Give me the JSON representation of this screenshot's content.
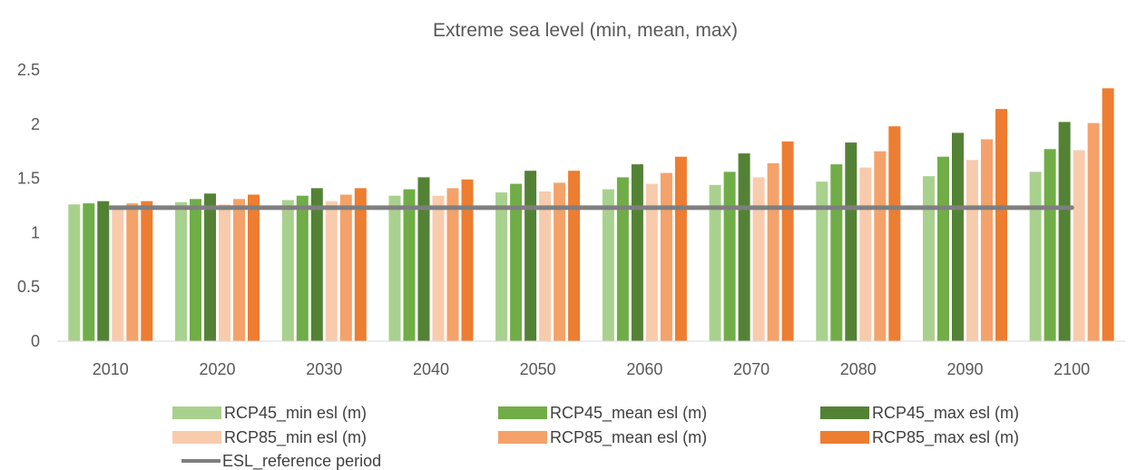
{
  "chart_data": {
    "type": "bar",
    "title": "Extreme sea level (min, mean, max)",
    "xlabel": "",
    "ylabel": "",
    "ylim": [
      0,
      2.5
    ],
    "yticks": [
      0,
      0.5,
      1,
      1.5,
      2,
      2.5
    ],
    "ytick_labels": [
      "0",
      "0.5",
      "1",
      "1.5",
      "2",
      "2.5"
    ],
    "grid": false,
    "legend_position": "bottom",
    "categories": [
      "2010",
      "2020",
      "2030",
      "2040",
      "2050",
      "2060",
      "2070",
      "2080",
      "2090",
      "2100"
    ],
    "series": [
      {
        "name": "RCP45_min esl (m)",
        "color": "#a9d18e",
        "values": [
          1.26,
          1.28,
          1.3,
          1.34,
          1.37,
          1.4,
          1.44,
          1.47,
          1.52,
          1.56
        ]
      },
      {
        "name": "RCP45_mean esl (m)",
        "color": "#70ad47",
        "values": [
          1.27,
          1.31,
          1.34,
          1.4,
          1.45,
          1.51,
          1.56,
          1.63,
          1.7,
          1.77
        ]
      },
      {
        "name": "RCP45_max esl (m)",
        "color": "#548235",
        "values": [
          1.29,
          1.36,
          1.41,
          1.51,
          1.57,
          1.63,
          1.73,
          1.83,
          1.92,
          2.02
        ]
      },
      {
        "name": "RCP85_min esl (m)",
        "color": "#f8cbad",
        "values": [
          1.25,
          1.26,
          1.29,
          1.34,
          1.38,
          1.45,
          1.51,
          1.6,
          1.67,
          1.76
        ]
      },
      {
        "name": "RCP85_mean esl (m)",
        "color": "#f4a26a",
        "values": [
          1.27,
          1.31,
          1.35,
          1.41,
          1.46,
          1.55,
          1.64,
          1.75,
          1.86,
          2.01
        ]
      },
      {
        "name": "RCP85_max esl (m)",
        "color": "#ed7d31",
        "values": [
          1.29,
          1.35,
          1.41,
          1.49,
          1.57,
          1.7,
          1.84,
          1.98,
          2.14,
          2.33
        ]
      }
    ],
    "reference_line": {
      "name": "ESL_reference period",
      "color": "#7f7f7f",
      "value": 1.23
    }
  }
}
